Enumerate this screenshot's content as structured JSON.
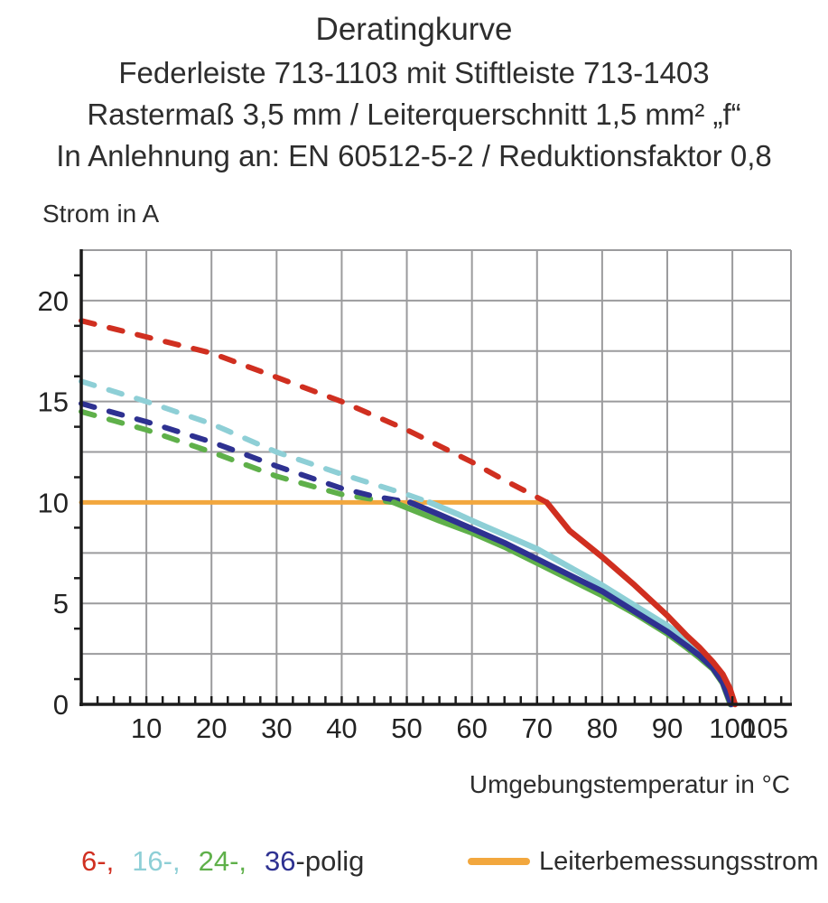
{
  "title": {
    "line1": "Deratingkurve",
    "line2": "Federleiste 713-1103 mit Stiftleiste 713-1403",
    "line3": "Rastermaß 3,5 mm / Leiterquerschnitt 1,5 mm² „f“",
    "line4": "In Anlehnung an: EN 60512-5-2 / Reduktionsfaktor 0,8"
  },
  "axes": {
    "y_title": "Strom in A",
    "x_title": "Umgebungstemperatur in °C"
  },
  "legend": {
    "poles": [
      {
        "label": "6-,",
        "color": "#d02f20"
      },
      {
        "label": "16-,",
        "color": "#8ecfd6"
      },
      {
        "label": "24-,",
        "color": "#5fb04a"
      },
      {
        "label": "36",
        "color": "#2e3191"
      }
    ],
    "poles_suffix": "-polig",
    "rated_label": "Leiterbemessungsstrom",
    "rated_color": "#f2a73e"
  },
  "colors": {
    "grid": "#9b9b9d",
    "axis": "#1c1c1c",
    "text": "#222222",
    "background": "#ffffff"
  },
  "chart_data": {
    "type": "line",
    "title": "Deratingkurve",
    "xlabel": "Umgebungstemperatur in °C",
    "ylabel": "Strom in A",
    "xlim": [
      0,
      109
    ],
    "ylim": [
      0,
      22.5
    ],
    "x_grid_step": 10,
    "y_grid_step": 2.5,
    "x_minor_tick_step": 2.5,
    "y_minor_tick_step": 1.25,
    "grid": true,
    "x_major_ticks": [
      10,
      20,
      30,
      40,
      50,
      60,
      70,
      80,
      90,
      100,
      105
    ],
    "y_major_ticks": [
      0,
      5,
      10,
      15,
      20
    ],
    "series": [
      {
        "name": "6-polig",
        "color": "#d02f20",
        "z": 4,
        "dashed": [
          [
            0,
            19.0
          ],
          [
            10,
            18.2
          ],
          [
            20,
            17.4
          ],
          [
            30,
            16.2
          ],
          [
            40,
            15.0
          ],
          [
            50,
            13.6
          ],
          [
            55,
            12.8
          ],
          [
            60,
            12.0
          ],
          [
            65,
            11.1
          ],
          [
            68,
            10.6
          ],
          [
            71.5,
            10.0
          ]
        ],
        "solid": [
          [
            71.5,
            10.0
          ],
          [
            75,
            8.6
          ],
          [
            80,
            7.3
          ],
          [
            85,
            5.9
          ],
          [
            90,
            4.4
          ],
          [
            93,
            3.4
          ],
          [
            95,
            2.8
          ],
          [
            97,
            2.1
          ],
          [
            98.5,
            1.5
          ],
          [
            99.6,
            0.8
          ],
          [
            100.4,
            0.0
          ]
        ]
      },
      {
        "name": "16-polig",
        "color": "#8ecfd6",
        "z": 2,
        "dashed": [
          [
            0,
            16.0
          ],
          [
            10,
            15.0
          ],
          [
            20,
            13.9
          ],
          [
            30,
            12.5
          ],
          [
            40,
            11.4
          ],
          [
            46,
            10.8
          ],
          [
            50,
            10.4
          ],
          [
            53.5,
            10.0
          ]
        ],
        "solid": [
          [
            53.5,
            10.0
          ],
          [
            58,
            9.4
          ],
          [
            60,
            9.1
          ],
          [
            65,
            8.4
          ],
          [
            70,
            7.7
          ],
          [
            75,
            6.8
          ],
          [
            80,
            5.9
          ],
          [
            85,
            4.9
          ],
          [
            90,
            3.9
          ],
          [
            93,
            3.2
          ],
          [
            95,
            2.7
          ],
          [
            97,
            2.0
          ],
          [
            98.5,
            1.3
          ],
          [
            100,
            0.0
          ]
        ]
      },
      {
        "name": "24-polig",
        "color": "#5fb04a",
        "z": 1,
        "dashed": [
          [
            0,
            14.5
          ],
          [
            10,
            13.6
          ],
          [
            20,
            12.5
          ],
          [
            30,
            11.3
          ],
          [
            40,
            10.4
          ],
          [
            44,
            10.2
          ],
          [
            48,
            10.0
          ]
        ],
        "solid": [
          [
            48,
            10.0
          ],
          [
            55,
            9.1
          ],
          [
            60,
            8.5
          ],
          [
            65,
            7.8
          ],
          [
            70,
            7.0
          ],
          [
            75,
            6.2
          ],
          [
            80,
            5.4
          ],
          [
            85,
            4.5
          ],
          [
            90,
            3.5
          ],
          [
            93,
            2.8
          ],
          [
            95,
            2.3
          ],
          [
            97,
            1.75
          ],
          [
            98.5,
            1.05
          ],
          [
            99.7,
            0.0
          ]
        ]
      },
      {
        "name": "36-polig",
        "color": "#2e3191",
        "z": 3,
        "dashed": [
          [
            0,
            14.9
          ],
          [
            10,
            14.0
          ],
          [
            20,
            13.0
          ],
          [
            30,
            11.8
          ],
          [
            40,
            10.7
          ],
          [
            45,
            10.3
          ],
          [
            50.5,
            10.0
          ]
        ],
        "solid": [
          [
            50.5,
            10.0
          ],
          [
            55,
            9.4
          ],
          [
            60,
            8.7
          ],
          [
            65,
            8.0
          ],
          [
            70,
            7.2
          ],
          [
            75,
            6.4
          ],
          [
            80,
            5.6
          ],
          [
            85,
            4.6
          ],
          [
            90,
            3.6
          ],
          [
            93,
            2.9
          ],
          [
            95,
            2.4
          ],
          [
            97,
            1.8
          ],
          [
            98.5,
            1.1
          ],
          [
            99.8,
            0.0
          ]
        ]
      },
      {
        "name": "Leiterbemessungsstrom",
        "color": "#f2a73e",
        "style": "rated",
        "z": 0,
        "solid": [
          [
            0,
            10.0
          ],
          [
            71.5,
            10.0
          ]
        ]
      }
    ]
  }
}
